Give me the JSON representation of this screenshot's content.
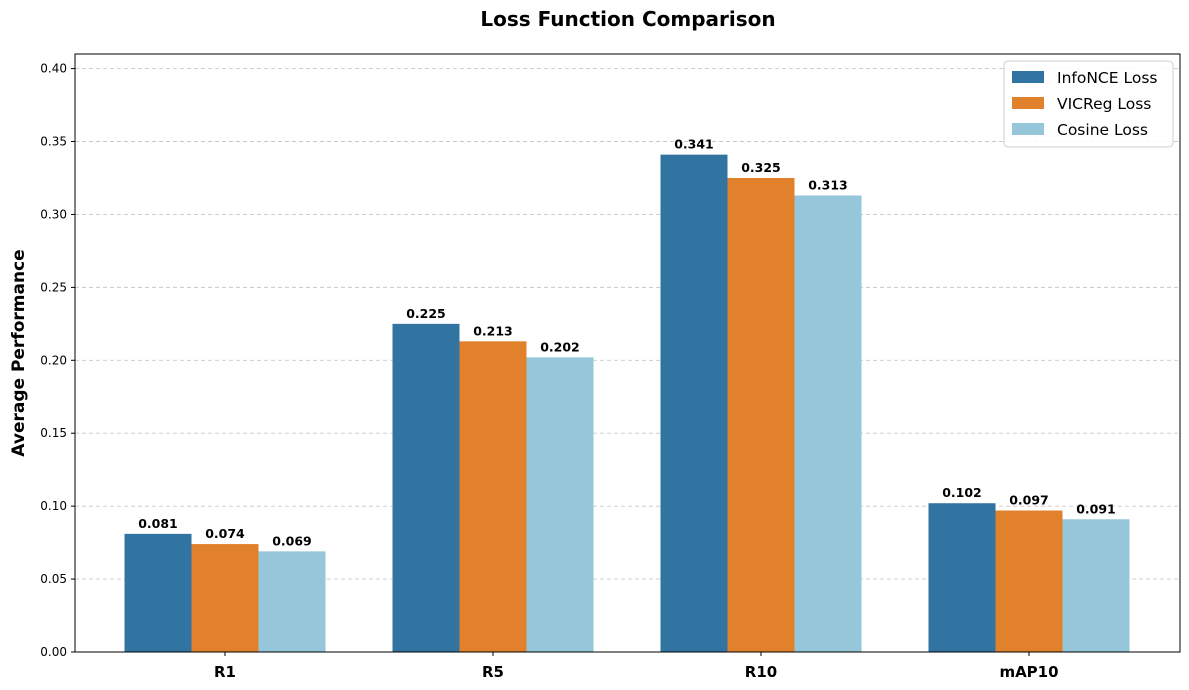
{
  "chart_data": {
    "type": "bar",
    "title": "Loss Function Comparison",
    "xlabel": "",
    "ylabel": "Average Performance",
    "categories": [
      "R1",
      "R5",
      "R10",
      "mAP10"
    ],
    "series": [
      {
        "name": "InfoNCE Loss",
        "color": "#3274a1",
        "values": [
          0.081,
          0.225,
          0.341,
          0.102
        ],
        "labels": [
          "0.081",
          "0.225",
          "0.341",
          "0.102"
        ]
      },
      {
        "name": "VICReg Loss",
        "color": "#e1812c",
        "values": [
          0.074,
          0.213,
          0.325,
          0.097
        ],
        "labels": [
          "0.074",
          "0.213",
          "0.325",
          "0.097"
        ]
      },
      {
        "name": "Cosine Loss",
        "color": "#95c6d9",
        "values": [
          0.069,
          0.202,
          0.313,
          0.091
        ],
        "labels": [
          "0.069",
          "0.202",
          "0.313",
          "0.091"
        ]
      }
    ],
    "ylim": [
      0,
      0.41
    ],
    "yticks": [
      0.0,
      0.05,
      0.1,
      0.15,
      0.2,
      0.25,
      0.3,
      0.35,
      0.4
    ],
    "ytick_labels": [
      "0.00",
      "0.05",
      "0.10",
      "0.15",
      "0.20",
      "0.25",
      "0.30",
      "0.35",
      "0.40"
    ],
    "grid": "horizontal dashed",
    "legend_position": "top-right"
  }
}
